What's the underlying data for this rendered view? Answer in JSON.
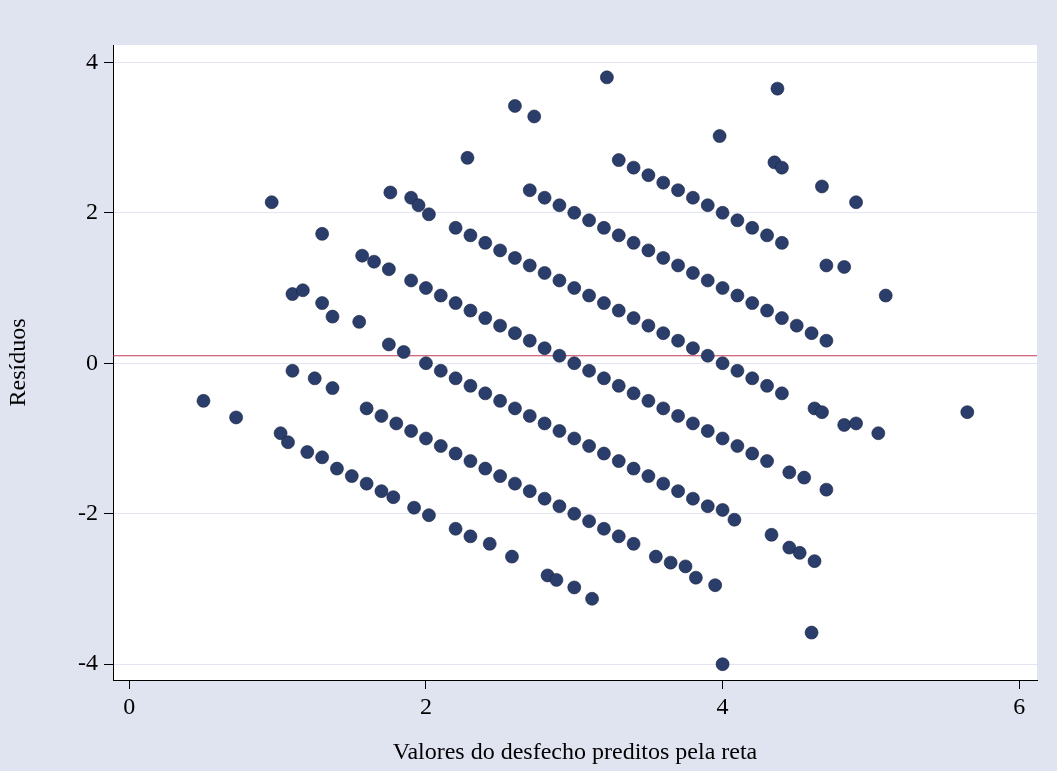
{
  "chart_data": {
    "type": "scatter",
    "xlabel": "Valores do desfecho preditos pela reta",
    "ylabel": "Resíduos",
    "xlim": [
      -0.11,
      6.12
    ],
    "ylim": [
      -4.21,
      4.23
    ],
    "xticks": [
      0,
      2,
      4,
      6
    ],
    "yticks": [
      -4,
      -2,
      0,
      2,
      4
    ],
    "grid": "y",
    "marker": "circle",
    "legend": false,
    "ref_lines": [
      {
        "axis": "y",
        "value": 0.1,
        "color": "#c0395a"
      }
    ],
    "series": [
      {
        "color": "#2a3d6b",
        "x": [
          3.3,
          3.4,
          3.5,
          3.6,
          3.7,
          3.8,
          3.9,
          4.0,
          4.1,
          4.2,
          4.3,
          4.4,
          2.7,
          2.8,
          2.9,
          3.0,
          3.1,
          3.2,
          3.3,
          3.4,
          3.5,
          3.6,
          3.7,
          3.8,
          3.9,
          4.0,
          4.1,
          4.2,
          4.3,
          4.4,
          4.5,
          4.6,
          4.7,
          2.2,
          2.3,
          2.4,
          2.5,
          2.6,
          2.7,
          2.8,
          2.9,
          3.0,
          3.1,
          3.2,
          3.3,
          3.4,
          3.5,
          3.6,
          3.7,
          3.8,
          3.9,
          4.0,
          4.1,
          4.2,
          4.3,
          4.4,
          1.9,
          2.0,
          2.1,
          2.2,
          2.3,
          2.4,
          2.5,
          2.6,
          2.7,
          2.8,
          2.9,
          3.0,
          3.1,
          3.2,
          3.3,
          3.4,
          3.5,
          3.6,
          3.7,
          3.8,
          3.9,
          4.0,
          4.1,
          2.0,
          2.1,
          2.2,
          2.3,
          2.4,
          2.5,
          2.6,
          2.7,
          2.8,
          2.9,
          3.0,
          3.1,
          3.2,
          3.3,
          3.4,
          3.5,
          3.6,
          3.7,
          3.8,
          3.9,
          1.6,
          1.7,
          1.8,
          1.9,
          2.0,
          2.1,
          2.2,
          2.3,
          2.4,
          2.5,
          2.6,
          2.7,
          2.8,
          2.9,
          3.0,
          3.1,
          3.2,
          3.3,
          3.4,
          0.5,
          0.72,
          0.96,
          1.02,
          1.07,
          1.1,
          1.1,
          1.17,
          1.2,
          1.25,
          1.3,
          1.3,
          1.3,
          1.37,
          1.37,
          1.4,
          1.5,
          1.55,
          1.57,
          1.6,
          1.65,
          1.75,
          1.76,
          1.7,
          1.78,
          1.75,
          1.85,
          1.9,
          1.95,
          2.02,
          1.92,
          2.02,
          2.2,
          2.28,
          2.3,
          2.43,
          2.58,
          2.6,
          2.73,
          2.82,
          2.88,
          3.0,
          3.12,
          3.22,
          3.55,
          3.65,
          3.75,
          3.82,
          3.95,
          3.98,
          4.0,
          4.0,
          4.08,
          4.2,
          4.3,
          4.45,
          4.55,
          4.7,
          4.33,
          4.45,
          4.52,
          4.62,
          4.6,
          4.35,
          4.4,
          4.37,
          4.67,
          4.9,
          4.7,
          4.82,
          5.1,
          4.62,
          4.67,
          4.82,
          4.9,
          5.05,
          5.65
        ],
        "values": [
          2.7,
          2.6,
          2.5,
          2.4,
          2.3,
          2.2,
          2.1,
          2.0,
          1.9,
          1.8,
          1.7,
          1.6,
          2.3,
          2.2,
          2.1,
          2.0,
          1.9,
          1.8,
          1.7,
          1.6,
          1.5,
          1.4,
          1.3,
          1.2,
          1.1,
          1.0,
          0.9,
          0.8,
          0.7,
          0.6,
          0.5,
          0.4,
          0.3,
          1.8,
          1.7,
          1.6,
          1.5,
          1.4,
          1.3,
          1.2,
          1.1,
          1.0,
          0.9,
          0.8,
          0.7,
          0.6,
          0.5,
          0.4,
          0.3,
          0.2,
          0.1,
          0.0,
          -0.1,
          -0.2,
          -0.3,
          -0.4,
          1.1,
          1.0,
          0.9,
          0.8,
          0.7,
          0.6,
          0.5,
          0.4,
          0.3,
          0.2,
          0.1,
          0.0,
          -0.1,
          -0.2,
          -0.3,
          -0.4,
          -0.5,
          -0.6,
          -0.7,
          -0.8,
          -0.9,
          -1.0,
          -1.1,
          0.0,
          -0.1,
          -0.2,
          -0.3,
          -0.4,
          -0.5,
          -0.6,
          -0.7,
          -0.8,
          -0.9,
          -1.0,
          -1.1,
          -1.2,
          -1.3,
          -1.4,
          -1.5,
          -1.6,
          -1.7,
          -1.8,
          -1.9,
          -0.6,
          -0.7,
          -0.8,
          -0.9,
          -1.0,
          -1.1,
          -1.2,
          -1.3,
          -1.4,
          -1.5,
          -1.6,
          -1.7,
          -1.8,
          -1.9,
          -2.0,
          -2.1,
          -2.2,
          -2.3,
          -2.4,
          -0.5,
          -0.72,
          2.14,
          -0.93,
          -1.05,
          0.92,
          -0.1,
          0.97,
          -1.18,
          -0.2,
          1.72,
          -1.25,
          0.8,
          -0.33,
          0.62,
          -1.4,
          -1.5,
          0.55,
          1.43,
          -1.6,
          1.35,
          1.25,
          2.27,
          -1.7,
          -1.78,
          0.25,
          0.15,
          2.2,
          2.1,
          1.98,
          -1.92,
          -2.02,
          -2.2,
          2.73,
          -2.3,
          -2.4,
          -2.57,
          3.42,
          3.28,
          -2.82,
          -2.88,
          -2.98,
          -3.13,
          3.8,
          -2.57,
          -2.65,
          -2.7,
          -2.85,
          -2.95,
          3.02,
          -4.0,
          -1.95,
          -2.08,
          -1.2,
          -1.3,
          -1.45,
          -1.52,
          -1.68,
          -2.28,
          -2.45,
          -2.52,
          -2.63,
          -3.58,
          2.67,
          2.6,
          3.65,
          2.35,
          2.14,
          1.3,
          1.28,
          0.9,
          -0.6,
          -0.65,
          -0.82,
          -0.8,
          -0.93,
          -0.65
        ]
      }
    ]
  }
}
